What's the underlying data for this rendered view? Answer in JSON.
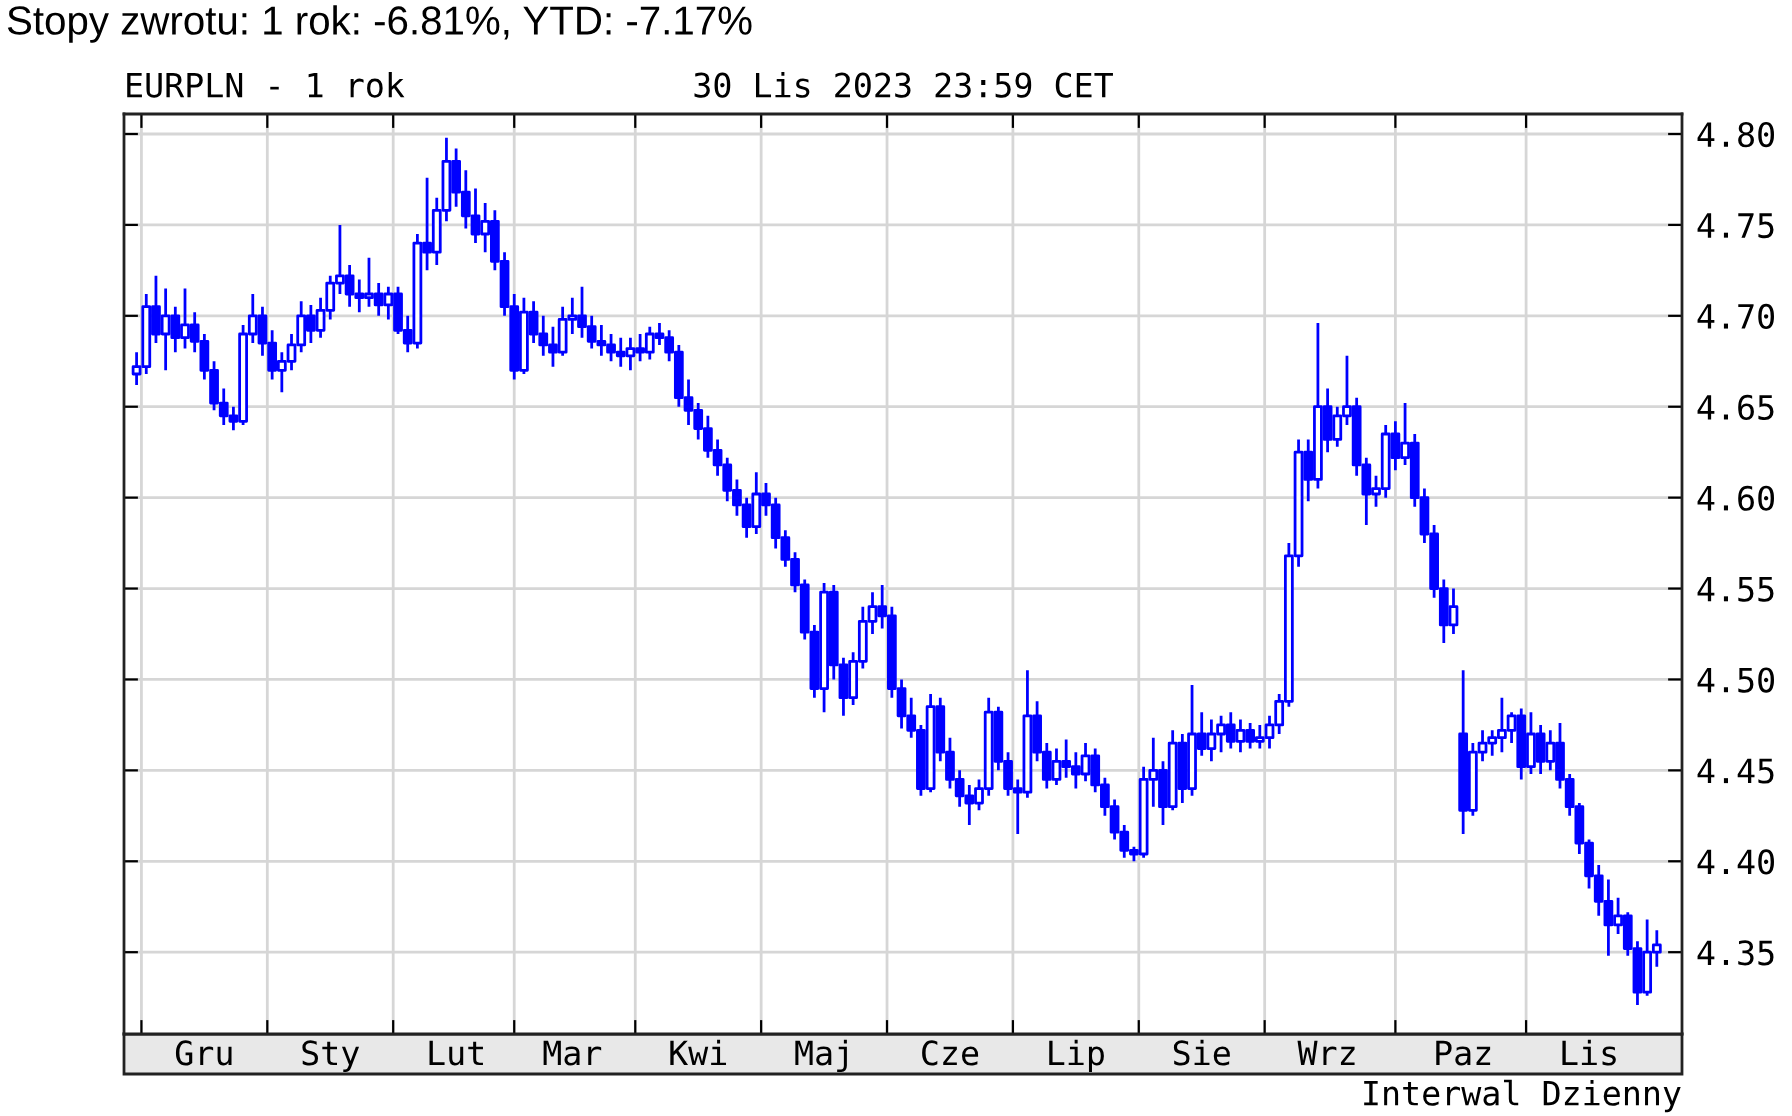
{
  "chart_data": {
    "type": "candlestick",
    "title": "Stopy zwrotu: 1 rok: -6.81%, YTD: -7.17%",
    "subtitle": "EURPLN - 1 rok",
    "annotations": [
      "30 Lis 2023 23:59 CET",
      "Interwal Dzienny"
    ],
    "color": "#0000ff",
    "categories": [
      null,
      null,
      null,
      null,
      null,
      null,
      null,
      "Gru",
      null,
      null,
      null,
      null,
      null,
      null,
      null,
      null,
      null,
      null,
      null,
      null,
      "Sty",
      null,
      null,
      null,
      null,
      null,
      null,
      null,
      null,
      null,
      null,
      null,
      null,
      "Lut",
      null,
      null,
      null,
      null,
      null,
      null,
      null,
      null,
      null,
      null,
      null,
      "Mar",
      null,
      null,
      null,
      null,
      null,
      null,
      null,
      null,
      null,
      null,
      null,
      null,
      "Kwi",
      null,
      null,
      null,
      null,
      null,
      null,
      null,
      null,
      null,
      null,
      null,
      null,
      "Maj",
      null,
      null,
      null,
      null,
      null,
      null,
      null,
      null,
      null,
      null,
      null,
      null,
      "Cze",
      null,
      null,
      null,
      null,
      null,
      null,
      null,
      null,
      null,
      null,
      null,
      null,
      "Lip",
      null,
      null,
      null,
      null,
      null,
      null,
      null,
      null,
      null,
      null,
      null,
      null,
      "Sie",
      null,
      null,
      null,
      null,
      null,
      null,
      null,
      null,
      null,
      null,
      null,
      null,
      "Wrz",
      null,
      null,
      null,
      null,
      null,
      null,
      null,
      null,
      null,
      null,
      null,
      null,
      null,
      "Paz",
      null,
      null,
      null,
      null,
      null,
      null,
      null,
      null,
      null,
      null,
      null,
      null,
      "Lis",
      null,
      null,
      null,
      null,
      null,
      null,
      null
    ],
    "ohlc": [
      [
        4.668,
        4.68,
        4.662,
        4.672
      ],
      [
        4.672,
        4.712,
        4.668,
        4.705
      ],
      [
        4.705,
        4.722,
        4.685,
        4.69
      ],
      [
        4.69,
        4.715,
        4.67,
        4.7
      ],
      [
        4.7,
        4.705,
        4.68,
        4.688
      ],
      [
        4.688,
        4.715,
        4.682,
        4.695
      ],
      [
        4.695,
        4.702,
        4.68,
        4.686
      ],
      [
        4.686,
        4.69,
        4.665,
        4.67
      ],
      [
        4.67,
        4.675,
        4.648,
        4.652
      ],
      [
        4.652,
        4.66,
        4.64,
        4.645
      ],
      [
        4.645,
        4.65,
        4.637,
        4.642
      ],
      [
        4.642,
        4.695,
        4.64,
        4.69
      ],
      [
        4.69,
        4.712,
        4.685,
        4.7
      ],
      [
        4.7,
        4.705,
        4.678,
        4.685
      ],
      [
        4.685,
        4.692,
        4.665,
        4.67
      ],
      [
        4.67,
        4.68,
        4.658,
        4.675
      ],
      [
        4.675,
        4.69,
        4.67,
        4.684
      ],
      [
        4.684,
        4.708,
        4.68,
        4.7
      ],
      [
        4.7,
        4.706,
        4.685,
        4.692
      ],
      [
        4.692,
        4.71,
        4.688,
        4.703
      ],
      [
        4.703,
        4.722,
        4.698,
        4.718
      ],
      [
        4.718,
        4.75,
        4.712,
        4.722
      ],
      [
        4.722,
        4.728,
        4.705,
        4.712
      ],
      [
        4.712,
        4.72,
        4.702,
        4.71
      ],
      [
        4.71,
        4.732,
        4.705,
        4.712
      ],
      [
        4.712,
        4.718,
        4.7,
        4.706
      ],
      [
        4.706,
        4.716,
        4.698,
        4.712
      ],
      [
        4.712,
        4.716,
        4.69,
        4.692
      ],
      [
        4.692,
        4.7,
        4.68,
        4.685
      ],
      [
        4.685,
        4.745,
        4.682,
        4.74
      ],
      [
        4.74,
        4.776,
        4.725,
        4.735
      ],
      [
        4.735,
        4.765,
        4.728,
        4.758
      ],
      [
        4.758,
        4.798,
        4.752,
        4.785
      ],
      [
        4.785,
        4.792,
        4.76,
        4.768
      ],
      [
        4.768,
        4.78,
        4.748,
        4.755
      ],
      [
        4.755,
        4.77,
        4.74,
        4.745
      ],
      [
        4.745,
        4.762,
        4.735,
        4.752
      ],
      [
        4.752,
        4.758,
        4.725,
        4.73
      ],
      [
        4.73,
        4.735,
        4.7,
        4.705
      ],
      [
        4.705,
        4.712,
        4.665,
        4.67
      ],
      [
        4.67,
        4.71,
        4.668,
        4.702
      ],
      [
        4.702,
        4.708,
        4.685,
        4.69
      ],
      [
        4.69,
        4.7,
        4.678,
        4.684
      ],
      [
        4.684,
        4.694,
        4.672,
        4.68
      ],
      [
        4.68,
        4.705,
        4.678,
        4.698
      ],
      [
        4.698,
        4.71,
        4.69,
        4.7
      ],
      [
        4.7,
        4.716,
        4.688,
        4.694
      ],
      [
        4.694,
        4.7,
        4.682,
        4.686
      ],
      [
        4.686,
        4.695,
        4.678,
        4.684
      ],
      [
        4.684,
        4.69,
        4.675,
        4.68
      ],
      [
        4.68,
        4.688,
        4.672,
        4.678
      ],
      [
        4.678,
        4.688,
        4.67,
        4.682
      ],
      [
        4.682,
        4.69,
        4.675,
        4.68
      ],
      [
        4.68,
        4.694,
        4.676,
        4.69
      ],
      [
        4.69,
        4.696,
        4.684,
        4.688
      ],
      [
        4.688,
        4.692,
        4.675,
        4.68
      ],
      [
        4.68,
        4.684,
        4.65,
        4.655
      ],
      [
        4.655,
        4.665,
        4.64,
        4.648
      ],
      [
        4.648,
        4.652,
        4.632,
        4.638
      ],
      [
        4.638,
        4.645,
        4.622,
        4.626
      ],
      [
        4.626,
        4.632,
        4.612,
        4.618
      ],
      [
        4.618,
        4.622,
        4.598,
        4.604
      ],
      [
        4.604,
        4.61,
        4.59,
        4.596
      ],
      [
        4.596,
        4.6,
        4.578,
        4.584
      ],
      [
        4.584,
        4.614,
        4.58,
        4.602
      ],
      [
        4.602,
        4.608,
        4.59,
        4.596
      ],
      [
        4.596,
        4.6,
        4.572,
        4.578
      ],
      [
        4.578,
        4.582,
        4.562,
        4.566
      ],
      [
        4.566,
        4.57,
        4.548,
        4.552
      ],
      [
        4.552,
        4.555,
        4.522,
        4.526
      ],
      [
        4.526,
        4.53,
        4.49,
        4.495
      ],
      [
        4.495,
        4.553,
        4.482,
        4.548
      ],
      [
        4.548,
        4.552,
        4.5,
        4.508
      ],
      [
        4.508,
        4.512,
        4.48,
        4.49
      ],
      [
        4.49,
        4.515,
        4.486,
        4.51
      ],
      [
        4.51,
        4.54,
        4.506,
        4.532
      ],
      [
        4.532,
        4.548,
        4.525,
        4.54
      ],
      [
        4.54,
        4.552,
        4.528,
        4.535
      ],
      [
        4.535,
        4.54,
        4.49,
        4.495
      ],
      [
        4.495,
        4.5,
        4.473,
        4.48
      ],
      [
        4.48,
        4.49,
        4.468,
        4.472
      ],
      [
        4.472,
        4.475,
        4.436,
        4.44
      ],
      [
        4.44,
        4.492,
        4.438,
        4.485
      ],
      [
        4.485,
        4.49,
        4.455,
        4.46
      ],
      [
        4.46,
        4.468,
        4.44,
        4.445
      ],
      [
        4.445,
        4.45,
        4.43,
        4.436
      ],
      [
        4.436,
        4.442,
        4.42,
        4.432
      ],
      [
        4.432,
        4.445,
        4.428,
        4.44
      ],
      [
        4.44,
        4.49,
        4.436,
        4.482
      ],
      [
        4.482,
        4.485,
        4.45,
        4.455
      ],
      [
        4.455,
        4.46,
        4.436,
        4.44
      ],
      [
        4.44,
        4.445,
        4.415,
        4.438
      ],
      [
        4.438,
        4.505,
        4.435,
        4.48
      ],
      [
        4.48,
        4.488,
        4.455,
        4.46
      ],
      [
        4.46,
        4.465,
        4.44,
        4.445
      ],
      [
        4.445,
        4.462,
        4.442,
        4.455
      ],
      [
        4.455,
        4.467,
        4.446,
        4.452
      ],
      [
        4.452,
        4.46,
        4.44,
        4.448
      ],
      [
        4.448,
        4.465,
        4.444,
        4.458
      ],
      [
        4.458,
        4.462,
        4.438,
        4.442
      ],
      [
        4.442,
        4.446,
        4.425,
        4.43
      ],
      [
        4.43,
        4.434,
        4.412,
        4.416
      ],
      [
        4.416,
        4.42,
        4.402,
        4.406
      ],
      [
        4.406,
        4.408,
        4.4,
        4.404
      ],
      [
        4.404,
        4.452,
        4.402,
        4.445
      ],
      [
        4.445,
        4.468,
        4.43,
        4.45
      ],
      [
        4.45,
        4.455,
        4.42,
        4.43
      ],
      [
        4.43,
        4.472,
        4.428,
        4.465
      ],
      [
        4.465,
        4.47,
        4.432,
        4.44
      ],
      [
        4.44,
        4.497,
        4.436,
        4.47
      ],
      [
        4.47,
        4.482,
        4.458,
        4.462
      ],
      [
        4.462,
        4.478,
        4.455,
        4.47
      ],
      [
        4.47,
        4.48,
        4.46,
        4.475
      ],
      [
        4.475,
        4.482,
        4.462,
        4.466
      ],
      [
        4.466,
        4.478,
        4.46,
        4.472
      ],
      [
        4.472,
        4.476,
        4.462,
        4.466
      ],
      [
        4.466,
        4.475,
        4.462,
        4.468
      ],
      [
        4.468,
        4.48,
        4.462,
        4.475
      ],
      [
        4.475,
        4.492,
        4.47,
        4.488
      ],
      [
        4.488,
        4.575,
        4.485,
        4.568
      ],
      [
        4.568,
        4.632,
        4.562,
        4.625
      ],
      [
        4.625,
        4.632,
        4.598,
        4.61
      ],
      [
        4.61,
        4.696,
        4.605,
        4.65
      ],
      [
        4.65,
        4.66,
        4.625,
        4.632
      ],
      [
        4.632,
        4.65,
        4.628,
        4.645
      ],
      [
        4.645,
        4.678,
        4.64,
        4.65
      ],
      [
        4.65,
        4.655,
        4.612,
        4.618
      ],
      [
        4.618,
        4.622,
        4.585,
        4.602
      ],
      [
        4.602,
        4.612,
        4.595,
        4.605
      ],
      [
        4.605,
        4.64,
        4.6,
        4.635
      ],
      [
        4.635,
        4.642,
        4.615,
        4.622
      ],
      [
        4.622,
        4.652,
        4.618,
        4.63
      ],
      [
        4.63,
        4.635,
        4.595,
        4.6
      ],
      [
        4.6,
        4.605,
        4.575,
        4.58
      ],
      [
        4.58,
        4.585,
        4.545,
        4.55
      ],
      [
        4.55,
        4.555,
        4.52,
        4.53
      ],
      [
        4.53,
        4.55,
        4.525,
        4.54
      ],
      [
        4.47,
        4.505,
        4.415,
        4.428
      ],
      [
        4.428,
        4.465,
        4.425,
        4.46
      ],
      [
        4.46,
        4.472,
        4.455,
        4.465
      ],
      [
        4.465,
        4.472,
        4.458,
        4.468
      ],
      [
        4.468,
        4.49,
        4.46,
        4.472
      ],
      [
        4.472,
        4.482,
        4.465,
        4.48
      ],
      [
        4.48,
        4.484,
        4.445,
        4.452
      ],
      [
        4.452,
        4.482,
        4.448,
        4.47
      ],
      [
        4.47,
        4.475,
        4.448,
        4.455
      ],
      [
        4.455,
        4.472,
        4.45,
        4.465
      ],
      [
        4.465,
        4.476,
        4.44,
        4.445
      ],
      [
        4.445,
        4.448,
        4.425,
        4.43
      ],
      [
        4.43,
        4.432,
        4.404,
        4.41
      ],
      [
        4.41,
        4.412,
        4.385,
        4.392
      ],
      [
        4.392,
        4.398,
        4.37,
        4.378
      ],
      [
        4.378,
        4.39,
        4.348,
        4.365
      ],
      [
        4.365,
        4.38,
        4.36,
        4.37
      ],
      [
        4.37,
        4.372,
        4.348,
        4.352
      ],
      [
        4.352,
        4.356,
        4.321,
        4.328
      ],
      [
        4.328,
        4.368,
        4.326,
        4.35
      ],
      [
        4.35,
        4.362,
        4.342,
        4.354
      ]
    ],
    "ylim": [
      4.305,
      4.811
    ],
    "yticks": [
      {
        "value": 4.35,
        "label": "4.35"
      },
      {
        "value": 4.4,
        "label": "4.40"
      },
      {
        "value": 4.45,
        "label": "4.45"
      },
      {
        "value": 4.5,
        "label": "4.50"
      },
      {
        "value": 4.55,
        "label": "4.55"
      },
      {
        "value": 4.6,
        "label": "4.60"
      },
      {
        "value": 4.65,
        "label": "4.65"
      },
      {
        "value": 4.7,
        "label": "4.70"
      },
      {
        "value": 4.75,
        "label": "4.75"
      },
      {
        "value": 4.8,
        "label": "4.80"
      }
    ],
    "grid": true
  }
}
